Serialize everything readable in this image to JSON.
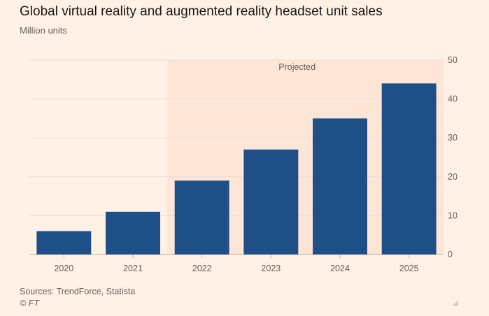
{
  "header": {
    "title": "Global virtual reality and augmented reality headset unit sales",
    "subtitle": "Million units"
  },
  "footer": {
    "source": "Sources: TrendForce, Statista",
    "copyright": "© FT"
  },
  "colors": {
    "background": "#fff1e5",
    "bar": "#1e5087",
    "projected_band": "#fde5d7",
    "gridline": "#e9dfd6"
  },
  "chart_data": {
    "type": "bar",
    "title": "Global virtual reality and augmented reality headset unit sales",
    "ylabel": "Million units",
    "xlabel": "",
    "categories": [
      "2020",
      "2021",
      "2022",
      "2023",
      "2024",
      "2025"
    ],
    "values": [
      6,
      11,
      19,
      27,
      35,
      44
    ],
    "ylim": [
      0,
      50
    ],
    "yticks": [
      0,
      10,
      20,
      30,
      40,
      50
    ],
    "y_axis_side": "right",
    "grid": true,
    "annotations": [
      {
        "text": "Projected",
        "from_category": "2022",
        "to_category": "2025"
      }
    ]
  }
}
